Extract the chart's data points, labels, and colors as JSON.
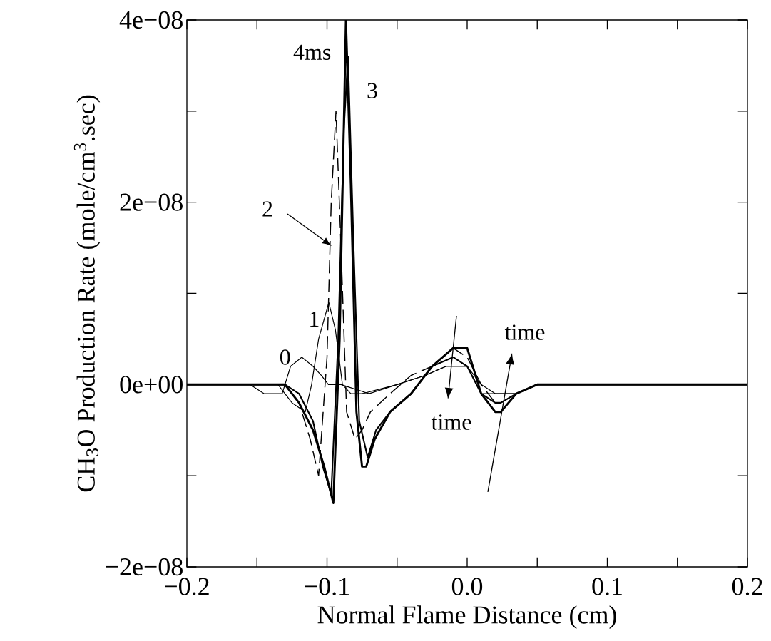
{
  "chart_data": {
    "type": "line",
    "xlabel": "Normal Flame Distance (cm)",
    "ylabel": "CH$_{3}$O Production Rate (mole/cm$^{3}$.sec)",
    "xlim": [
      -0.2,
      0.2
    ],
    "ylim": [
      -2e-08,
      4e-08
    ],
    "xticks": [
      {
        "value": -0.2,
        "label": "−0.2"
      },
      {
        "value": -0.15,
        "label": null
      },
      {
        "value": -0.1,
        "label": "−0.1"
      },
      {
        "value": -0.05,
        "label": null
      },
      {
        "value": 0,
        "label": "0.0"
      },
      {
        "value": 0.05,
        "label": null
      },
      {
        "value": 0.1,
        "label": "0.1"
      },
      {
        "value": 0.15,
        "label": null
      },
      {
        "value": 0.2,
        "label": "0.2"
      }
    ],
    "yticks": [
      {
        "value": -2e-08,
        "label": "−2e−08"
      },
      {
        "value": -1e-08,
        "label": null
      },
      {
        "value": 0,
        "label": "0e+00"
      },
      {
        "value": 1e-08,
        "label": null
      },
      {
        "value": 2e-08,
        "label": "2e−08"
      },
      {
        "value": 3e-08,
        "label": null
      },
      {
        "value": 4e-08,
        "label": "4e−08"
      }
    ],
    "series": [
      {
        "name": "0",
        "color": "#000000",
        "line_style": "solid",
        "x": [
          -0.2,
          -0.17,
          -0.155,
          -0.145,
          -0.138,
          -0.132,
          -0.126,
          -0.118,
          -0.11,
          -0.104,
          -0.099,
          -0.09,
          -0.07,
          -0.05,
          -0.03,
          -0.015,
          -0.008,
          0.0,
          0.01,
          0.02,
          0.024,
          0.035,
          0.05,
          0.07,
          0.1,
          0.2
        ],
        "values": [
          0,
          0,
          0,
          -1e-09,
          -1e-09,
          -1e-09,
          2e-09,
          3e-09,
          2e-09,
          1e-09,
          0,
          0,
          -1e-09,
          0,
          1e-09,
          2e-09,
          2e-09,
          2e-09,
          0,
          -1e-09,
          -1e-09,
          -1e-09,
          0,
          0,
          0,
          0
        ]
      },
      {
        "name": "1",
        "color": "#000000",
        "line_style": "solid",
        "x": [
          -0.2,
          -0.15,
          -0.135,
          -0.125,
          -0.1155,
          -0.111,
          -0.106,
          -0.0987,
          -0.094,
          -0.089,
          -0.083,
          -0.075,
          -0.05,
          -0.03,
          -0.015,
          -0.008,
          0.0,
          0.01,
          0.02,
          0.024,
          0.035,
          0.05,
          0.07,
          0.1,
          0.2
        ],
        "values": [
          0,
          0,
          0,
          -2e-09,
          -3e-09,
          0,
          5e-09,
          9e-09,
          6e-09,
          0,
          -1e-09,
          -1e-09,
          0,
          1e-09,
          2e-09,
          2e-09,
          2e-09,
          -1e-09,
          -1e-09,
          -1e-09,
          -1e-09,
          0,
          0,
          0,
          0
        ]
      },
      {
        "name": "2",
        "color": "#000000",
        "line_style": "dashed",
        "x": [
          -0.2,
          -0.15,
          -0.13,
          -0.12,
          -0.112,
          -0.106,
          -0.1,
          -0.097,
          -0.0936,
          -0.09,
          -0.086,
          -0.08,
          -0.075,
          -0.069,
          -0.055,
          -0.04,
          -0.025,
          -0.01,
          0.0,
          0.01,
          0.02,
          0.024,
          0.035,
          0.05,
          0.07,
          0.1,
          0.2
        ],
        "values": [
          0,
          0,
          0,
          -2e-09,
          -6e-09,
          -1e-08,
          3e-09,
          2e-08,
          3e-08,
          1.5e-08,
          -3e-09,
          -6e-09,
          -5e-09,
          -3e-09,
          -1e-09,
          1e-09,
          2e-09,
          4e-09,
          3e-09,
          0,
          -2e-09,
          -2e-09,
          -1e-09,
          0,
          0,
          0,
          0
        ]
      },
      {
        "name": "3",
        "color": "#000000",
        "line_style": "solid",
        "x": [
          -0.2,
          -0.15,
          -0.13,
          -0.12,
          -0.11,
          -0.103,
          -0.097,
          -0.092,
          -0.088,
          -0.085,
          -0.081,
          -0.077,
          -0.071,
          -0.065,
          -0.055,
          -0.04,
          -0.025,
          -0.01,
          0.0,
          0.01,
          0.02,
          0.024,
          0.035,
          0.05,
          0.07,
          0.1,
          0.2
        ],
        "values": [
          0,
          0,
          0,
          -1e-09,
          -4e-09,
          -9e-09,
          -1.2e-08,
          5e-09,
          2.8e-08,
          3.6e-08,
          1.5e-08,
          -4e-09,
          -8e-09,
          -5e-09,
          -3e-09,
          -1e-09,
          2e-09,
          3e-09,
          2e-09,
          -1e-09,
          -2e-09,
          -2e-09,
          -1e-09,
          0,
          0,
          0,
          0
        ]
      },
      {
        "name": "4ms",
        "color": "#000000",
        "line_style": "solid",
        "x": [
          -0.2,
          -0.15,
          -0.13,
          -0.12,
          -0.11,
          -0.102,
          -0.0955,
          -0.091,
          -0.0865,
          -0.083,
          -0.079,
          -0.075,
          -0.072,
          -0.066,
          -0.055,
          -0.04,
          -0.025,
          -0.01,
          0.0,
          0.01,
          0.02,
          0.024,
          0.035,
          0.05,
          0.07,
          0.1,
          0.2
        ],
        "values": [
          0,
          0,
          0,
          -2e-09,
          -5e-09,
          -9e-09,
          -1.3e-08,
          5e-09,
          4e-08,
          2.2e-08,
          -3e-09,
          -9e-09,
          -9e-09,
          -6e-09,
          -3e-09,
          -1e-09,
          2e-09,
          4e-09,
          4e-09,
          -1e-09,
          -3e-09,
          -3e-09,
          -1e-09,
          0,
          0,
          0,
          0
        ]
      }
    ],
    "annotations": [
      "time",
      "time"
    ]
  }
}
